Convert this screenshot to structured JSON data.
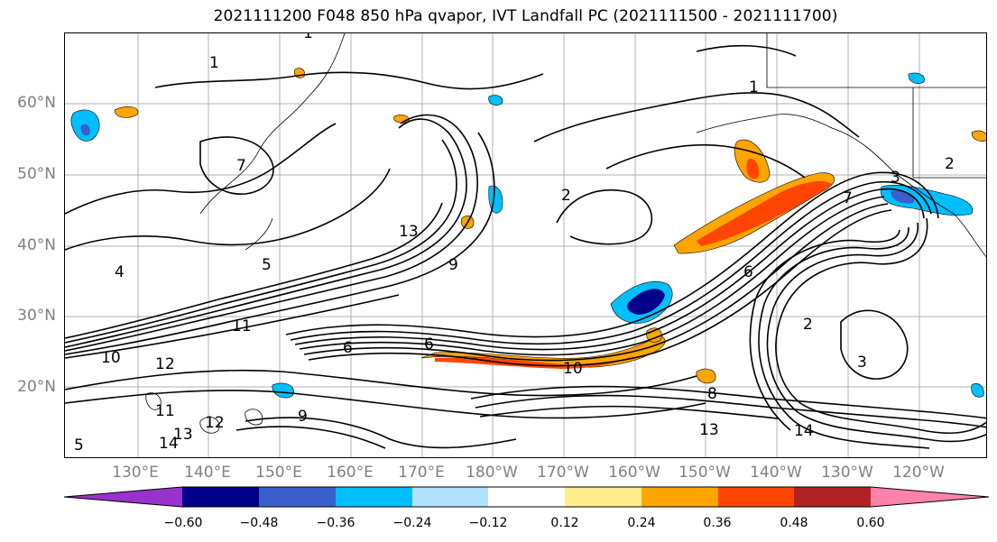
{
  "title": "2021111200 F048 850 hPa qvapor, IVT Landfall PC (2021111500 - 2021111700)",
  "lat_labels": [
    "60°N",
    "50°N",
    "40°N",
    "30°N",
    "20°N"
  ],
  "lon_labels": [
    "130°E",
    "140°E",
    "150°E",
    "160°E",
    "170°E",
    "180°W",
    "170°W",
    "160°W",
    "150°W",
    "140°W",
    "130°W",
    "120°W"
  ],
  "colorbar": {
    "ticks": [
      "−0.60",
      "−0.48",
      "−0.36",
      "−0.24",
      "−0.12",
      "0.12",
      "0.24",
      "0.36",
      "0.48",
      "0.60"
    ],
    "colors": [
      "#9932cc",
      "#00008b",
      "#3a5fcd",
      "#00bfff",
      "#b0e2ff",
      "#ffffff",
      "#ffec8b",
      "#ffa500",
      "#ff4500",
      "#b22222",
      "#ff82ab"
    ]
  },
  "contour_labels": [
    "1",
    "1",
    "1",
    "2",
    "2",
    "2",
    "3",
    "3",
    "4",
    "5",
    "5",
    "6",
    "6",
    "6",
    "7",
    "7",
    "8",
    "9",
    "9",
    "10",
    "10",
    "11",
    "11",
    "12",
    "12",
    "13",
    "13",
    "13",
    "14",
    "14"
  ]
}
